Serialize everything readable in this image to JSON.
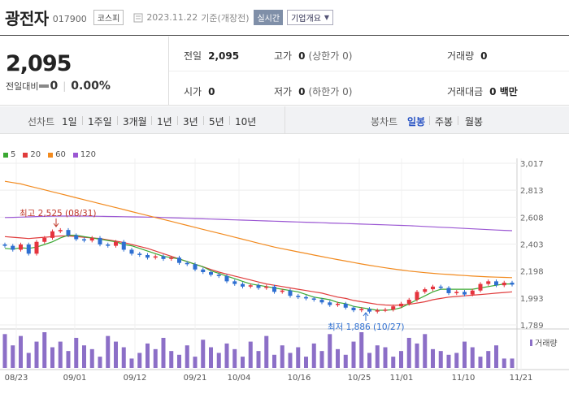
{
  "header": {
    "name": "광전자",
    "code": "017900",
    "market": "코스피",
    "date": "2023.11.22",
    "basis": "기준(개장전)",
    "realtime": "실시간",
    "overview": "기업개요"
  },
  "quote": {
    "price": "2,095",
    "change_label": "전일대비",
    "change": "0",
    "change_pct": "0.00%",
    "prev_close_label": "전일",
    "prev_close": "2,095",
    "high_label": "고가",
    "high": "0",
    "high_limit": "(상한가 0)",
    "volume_label": "거래량",
    "volume": "0",
    "open_label": "시가",
    "open": "0",
    "low_label": "저가",
    "low": "0",
    "low_limit": "(하한가 0)",
    "amount_label": "거래대금",
    "amount": "0 백만"
  },
  "periods": {
    "line_label": "선차트",
    "line_items": [
      "1일",
      "1주일",
      "3개월",
      "1년",
      "3년",
      "5년",
      "10년"
    ],
    "candle_label": "봉차트",
    "candle_items": [
      "일봉",
      "주봉",
      "월봉"
    ],
    "active": "일봉"
  },
  "colors": {
    "up": "#e5343e",
    "down": "#2e6fd1",
    "ma5": "#3aa832",
    "ma20": "#e03c3c",
    "ma60": "#f28a1e",
    "ma120": "#9b57d3",
    "volume": "#8c6fc7",
    "accent": "#2954c4"
  },
  "chart_data": {
    "type": "candlestick",
    "legend": [
      {
        "label": "5",
        "color": "#3aa832"
      },
      {
        "label": "20",
        "color": "#e03c3c"
      },
      {
        "label": "60",
        "color": "#f28a1e"
      },
      {
        "label": "120",
        "color": "#9b57d3"
      }
    ],
    "y_ticks": [
      "3,017",
      "2,813",
      "2,608",
      "2,403",
      "2,198",
      "1,993",
      "1,789"
    ],
    "ylim": [
      1789,
      3017
    ],
    "x_ticks": [
      "08/23",
      "09/01",
      "09/12",
      "09/21",
      "10/04",
      "10/16",
      "10/25",
      "11/01",
      "11/10",
      "11/21"
    ],
    "annotations": {
      "high": "최고 2,525 (08/31)",
      "low": "최저 1,886 (10/27)"
    },
    "volume_label": "거래량",
    "close": [
      2390,
      2360,
      2400,
      2330,
      2420,
      2450,
      2500,
      2510,
      2470,
      2440,
      2430,
      2450,
      2400,
      2390,
      2420,
      2360,
      2330,
      2320,
      2300,
      2310,
      2290,
      2300,
      2260,
      2250,
      2210,
      2190,
      2170,
      2160,
      2120,
      2100,
      2080,
      2090,
      2070,
      2080,
      2040,
      2050,
      2010,
      2000,
      1990,
      1980,
      1960,
      1940,
      1950,
      1920,
      1900,
      1910,
      1890,
      1900,
      1905,
      1930,
      1950,
      1980,
      2040,
      2060,
      2080,
      2070,
      2030,
      2040,
      2020,
      2050,
      2100,
      2120,
      2090,
      2110,
      2095
    ],
    "ma5": [
      2370,
      2365,
      2375,
      2370,
      2380,
      2400,
      2420,
      2450,
      2470,
      2470,
      2460,
      2450,
      2440,
      2430,
      2420,
      2400,
      2390,
      2370,
      2350,
      2330,
      2310,
      2300,
      2290,
      2270,
      2250,
      2230,
      2200,
      2180,
      2160,
      2140,
      2120,
      2100,
      2090,
      2080,
      2070,
      2060,
      2050,
      2040,
      2020,
      2000,
      1990,
      1980,
      1960,
      1950,
      1930,
      1920,
      1910,
      1900,
      1900,
      1905,
      1920,
      1950,
      1980,
      2010,
      2040,
      2060,
      2060,
      2060,
      2060,
      2060,
      2070,
      2080,
      2090,
      2100,
      2100
    ],
    "ma20": [
      2460,
      2455,
      2450,
      2445,
      2450,
      2455,
      2460,
      2465,
      2465,
      2460,
      2455,
      2450,
      2445,
      2435,
      2425,
      2415,
      2400,
      2385,
      2370,
      2350,
      2330,
      2310,
      2290,
      2270,
      2250,
      2230,
      2210,
      2190,
      2175,
      2160,
      2145,
      2130,
      2115,
      2100,
      2090,
      2080,
      2070,
      2060,
      2050,
      2040,
      2030,
      2015,
      2000,
      1990,
      1975,
      1965,
      1955,
      1945,
      1940,
      1938,
      1940,
      1945,
      1955,
      1965,
      1980,
      1990,
      2000,
      2005,
      2010,
      2015,
      2020,
      2025,
      2030,
      2035,
      2040
    ],
    "ma60": [
      2880,
      2870,
      2860,
      2845,
      2830,
      2815,
      2800,
      2785,
      2770,
      2755,
      2740,
      2725,
      2710,
      2695,
      2680,
      2665,
      2650,
      2635,
      2620,
      2605,
      2590,
      2575,
      2560,
      2545,
      2530,
      2515,
      2500,
      2485,
      2470,
      2455,
      2440,
      2425,
      2410,
      2395,
      2380,
      2368,
      2356,
      2344,
      2332,
      2320,
      2308,
      2296,
      2285,
      2274,
      2263,
      2252,
      2242,
      2232,
      2223,
      2214,
      2206,
      2198,
      2192,
      2186,
      2181,
      2176,
      2172,
      2168,
      2164,
      2160,
      2157,
      2154,
      2152,
      2150,
      2148
    ],
    "ma120": [
      2605,
      2606,
      2608,
      2610,
      2612,
      2614,
      2615,
      2616,
      2616,
      2616,
      2616,
      2615,
      2614,
      2613,
      2612,
      2611,
      2610,
      2609,
      2608,
      2607,
      2605,
      2603,
      2601,
      2599,
      2597,
      2595,
      2593,
      2591,
      2589,
      2587,
      2585,
      2583,
      2581,
      2579,
      2577,
      2575,
      2573,
      2571,
      2569,
      2567,
      2565,
      2563,
      2561,
      2559,
      2557,
      2555,
      2553,
      2551,
      2549,
      2547,
      2545,
      2543,
      2540,
      2537,
      2534,
      2531,
      2528,
      2525,
      2522,
      2519,
      2516,
      2513,
      2510,
      2507,
      2505
    ],
    "volume": [
      90,
      60,
      85,
      40,
      70,
      95,
      55,
      70,
      45,
      80,
      60,
      50,
      30,
      85,
      70,
      55,
      25,
      40,
      65,
      50,
      80,
      45,
      35,
      60,
      30,
      75,
      55,
      40,
      65,
      50,
      30,
      70,
      45,
      85,
      35,
      60,
      40,
      55,
      30,
      65,
      45,
      90,
      50,
      35,
      70,
      95,
      40,
      60,
      55,
      30,
      45,
      80,
      65,
      90,
      50,
      45,
      35,
      40,
      70,
      55,
      30,
      45,
      60,
      25,
      25
    ]
  }
}
